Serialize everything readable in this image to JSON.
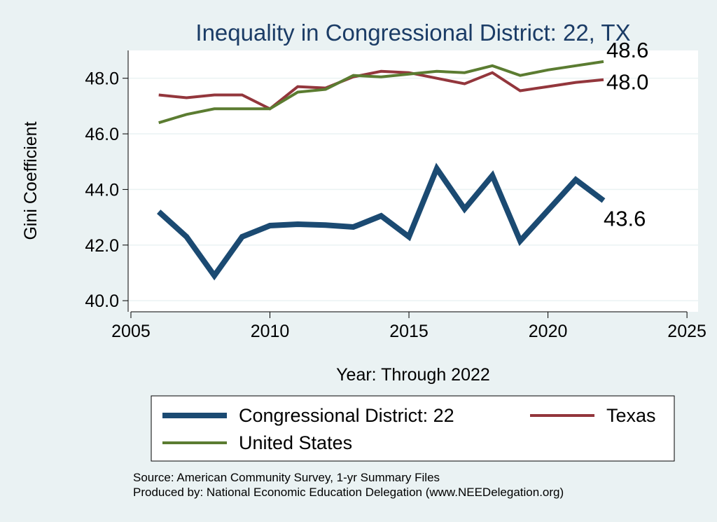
{
  "chart_data": {
    "type": "line",
    "title": "Inequality in Congressional District:  22, TX",
    "xlabel": "Year: Through 2022",
    "ylabel": "Gini Coefficient",
    "xlim": [
      2004.9,
      2025.4
    ],
    "ylim": [
      39.6,
      49.0
    ],
    "xticks": [
      2005,
      2010,
      2015,
      2020,
      2025
    ],
    "xtick_labels": [
      "2005",
      "2010",
      "2015",
      "2020",
      "2025"
    ],
    "yticks": [
      40,
      42,
      44,
      46,
      48
    ],
    "ytick_labels": [
      "40.0",
      "42.0",
      "44.0",
      "46.0",
      "48.0"
    ],
    "grid": true,
    "legend_position": "bottom",
    "series": [
      {
        "name": "Congressional District:  22",
        "color": "#1b4a72",
        "width": 8,
        "end_label": "43.6",
        "x": [
          2006,
          2007,
          2008,
          2009,
          2010,
          2011,
          2012,
          2013,
          2014,
          2015,
          2016,
          2017,
          2018,
          2019,
          2020,
          2021,
          2022
        ],
        "values": [
          43.2,
          42.3,
          40.9,
          42.3,
          42.7,
          42.75,
          42.72,
          42.65,
          43.05,
          42.3,
          44.75,
          43.3,
          44.5,
          42.15,
          43.25,
          44.35,
          43.6
        ]
      },
      {
        "name": "Texas",
        "color": "#93363c",
        "width": 4,
        "end_label": "48.0",
        "x": [
          2006,
          2007,
          2008,
          2009,
          2010,
          2011,
          2012,
          2013,
          2014,
          2015,
          2016,
          2017,
          2018,
          2019,
          2020,
          2021,
          2022
        ],
        "values": [
          47.4,
          47.3,
          47.4,
          47.4,
          46.9,
          47.7,
          47.65,
          48.05,
          48.25,
          48.2,
          48.0,
          47.8,
          48.2,
          47.55,
          47.7,
          47.85,
          47.95
        ]
      },
      {
        "name": "United States",
        "color": "#5b7c31",
        "width": 4,
        "end_label": "48.6",
        "x": [
          2006,
          2007,
          2008,
          2009,
          2010,
          2011,
          2012,
          2013,
          2014,
          2015,
          2016,
          2017,
          2018,
          2019,
          2020,
          2021,
          2022
        ],
        "values": [
          46.4,
          46.7,
          46.9,
          46.9,
          46.9,
          47.5,
          47.6,
          48.1,
          48.05,
          48.15,
          48.25,
          48.2,
          48.45,
          48.1,
          48.3,
          48.45,
          48.6
        ]
      }
    ],
    "legend_items": [
      {
        "label": "Congressional District:  22",
        "series": 0
      },
      {
        "label": "Texas",
        "series": 1
      },
      {
        "label": "United States",
        "series": 2
      }
    ]
  },
  "source": {
    "line1": "Source: American Community Survey, 1-yr Summary Files",
    "line2": "Produced by: National Economic Education Delegation (www.NEEDelegation.org)"
  }
}
